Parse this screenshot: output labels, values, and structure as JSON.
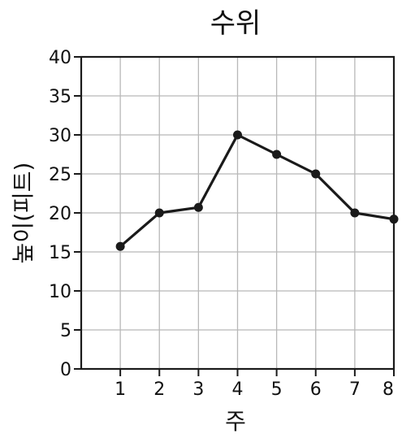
{
  "chart_data": {
    "type": "line",
    "title": "수위",
    "xlabel": "주",
    "ylabel": "높이(피트)",
    "x": [
      1,
      2,
      3,
      4,
      5,
      6,
      7,
      8
    ],
    "series": [
      {
        "values": [
          15.7,
          20,
          20.7,
          30,
          27.5,
          25,
          20,
          19.2
        ]
      }
    ],
    "xlim": [
      0,
      8
    ],
    "ylim": [
      0,
      40
    ],
    "x_ticks": [
      "1",
      "2",
      "3",
      "4",
      "5",
      "6",
      "7",
      "8"
    ],
    "y_ticks": [
      "0",
      "5",
      "10",
      "15",
      "20",
      "25",
      "30",
      "35",
      "40"
    ],
    "grid": true,
    "colors": {
      "line": "#1a1a1a",
      "marker": "#1a1a1a",
      "grid": "#b8b8b8",
      "axes": "#1a1a1a"
    }
  }
}
